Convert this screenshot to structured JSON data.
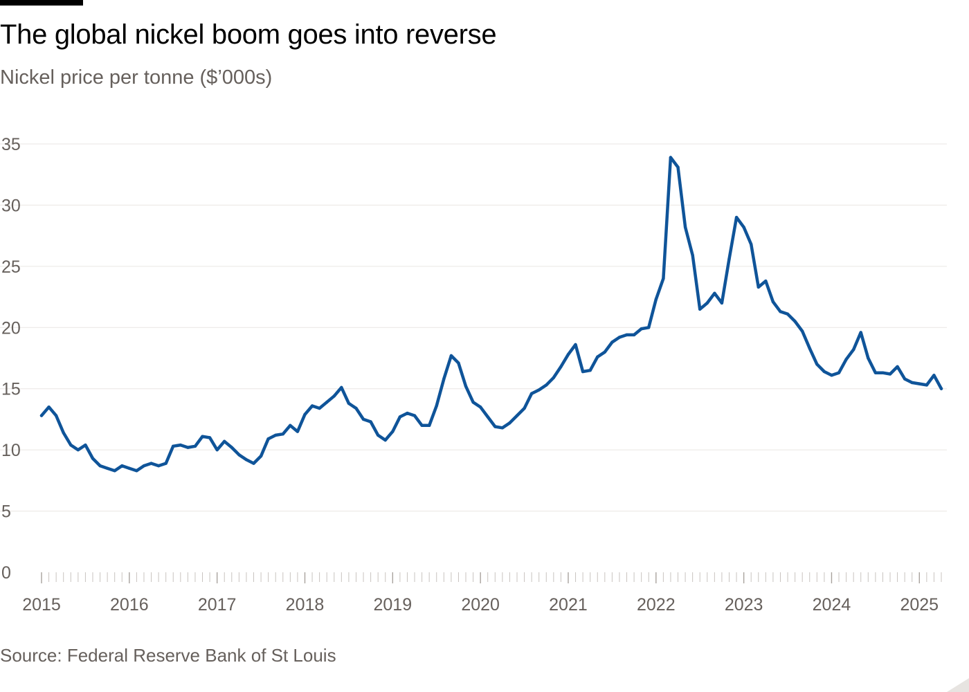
{
  "header": {
    "title": "The global nickel boom goes into reverse",
    "subtitle": "Nickel price per tonne ($’000s)"
  },
  "footer": {
    "source": "Source: Federal Reserve Bank of St Louis"
  },
  "colors": {
    "line": "#0f5499",
    "grid": "#e9e6e3",
    "text": "#66605c",
    "baseline": "#c8c3bf"
  },
  "chart_data": {
    "type": "line",
    "title": "The global nickel boom goes into reverse",
    "ylabel": "Nickel price per tonne ($’000s)",
    "xlabel": "",
    "ylim": [
      0,
      35
    ],
    "yticks": [
      0,
      5,
      10,
      15,
      20,
      25,
      30,
      35
    ],
    "x_range": [
      "2015-01",
      "2025-04"
    ],
    "xtick_labels": [
      "2015",
      "2016",
      "2017",
      "2018",
      "2019",
      "2020",
      "2021",
      "2022",
      "2023",
      "2024",
      "2025"
    ],
    "grid": true,
    "legend": "none",
    "series": [
      {
        "points": [
          [
            "2015-01",
            12.8
          ],
          [
            "2015-02",
            13.5
          ],
          [
            "2015-03",
            12.8
          ],
          [
            "2015-04",
            11.4
          ],
          [
            "2015-05",
            10.4
          ],
          [
            "2015-06",
            10.0
          ],
          [
            "2015-07",
            10.4
          ],
          [
            "2015-08",
            9.3
          ],
          [
            "2015-09",
            8.7
          ],
          [
            "2015-10",
            8.5
          ],
          [
            "2015-11",
            8.3
          ],
          [
            "2015-12",
            8.7
          ],
          [
            "2016-01",
            8.5
          ],
          [
            "2016-02",
            8.3
          ],
          [
            "2016-03",
            8.7
          ],
          [
            "2016-04",
            8.9
          ],
          [
            "2016-05",
            8.7
          ],
          [
            "2016-06",
            8.9
          ],
          [
            "2016-07",
            10.3
          ],
          [
            "2016-08",
            10.4
          ],
          [
            "2016-09",
            10.2
          ],
          [
            "2016-10",
            10.3
          ],
          [
            "2016-11",
            11.1
          ],
          [
            "2016-12",
            11.0
          ],
          [
            "2017-01",
            10.0
          ],
          [
            "2017-02",
            10.7
          ],
          [
            "2017-03",
            10.2
          ],
          [
            "2017-04",
            9.6
          ],
          [
            "2017-05",
            9.2
          ],
          [
            "2017-06",
            8.9
          ],
          [
            "2017-07",
            9.5
          ],
          [
            "2017-08",
            10.9
          ],
          [
            "2017-09",
            11.2
          ],
          [
            "2017-10",
            11.3
          ],
          [
            "2017-11",
            12.0
          ],
          [
            "2017-12",
            11.5
          ],
          [
            "2018-01",
            12.9
          ],
          [
            "2018-02",
            13.6
          ],
          [
            "2018-03",
            13.4
          ],
          [
            "2018-04",
            13.9
          ],
          [
            "2018-05",
            14.4
          ],
          [
            "2018-06",
            15.1
          ],
          [
            "2018-07",
            13.8
          ],
          [
            "2018-08",
            13.4
          ],
          [
            "2018-09",
            12.5
          ],
          [
            "2018-10",
            12.3
          ],
          [
            "2018-11",
            11.2
          ],
          [
            "2018-12",
            10.8
          ],
          [
            "2019-01",
            11.5
          ],
          [
            "2019-02",
            12.7
          ],
          [
            "2019-03",
            13.0
          ],
          [
            "2019-04",
            12.8
          ],
          [
            "2019-05",
            12.0
          ],
          [
            "2019-06",
            12.0
          ],
          [
            "2019-07",
            13.6
          ],
          [
            "2019-08",
            15.8
          ],
          [
            "2019-09",
            17.7
          ],
          [
            "2019-10",
            17.1
          ],
          [
            "2019-11",
            15.2
          ],
          [
            "2019-12",
            13.9
          ],
          [
            "2020-01",
            13.5
          ],
          [
            "2020-02",
            12.7
          ],
          [
            "2020-03",
            11.9
          ],
          [
            "2020-04",
            11.8
          ],
          [
            "2020-05",
            12.2
          ],
          [
            "2020-06",
            12.8
          ],
          [
            "2020-07",
            13.4
          ],
          [
            "2020-08",
            14.6
          ],
          [
            "2020-09",
            14.9
          ],
          [
            "2020-10",
            15.3
          ],
          [
            "2020-11",
            15.9
          ],
          [
            "2020-12",
            16.8
          ],
          [
            "2021-01",
            17.8
          ],
          [
            "2021-02",
            18.6
          ],
          [
            "2021-03",
            16.4
          ],
          [
            "2021-04",
            16.5
          ],
          [
            "2021-05",
            17.6
          ],
          [
            "2021-06",
            18.0
          ],
          [
            "2021-07",
            18.8
          ],
          [
            "2021-08",
            19.2
          ],
          [
            "2021-09",
            19.4
          ],
          [
            "2021-10",
            19.4
          ],
          [
            "2021-11",
            19.9
          ],
          [
            "2021-12",
            20.0
          ],
          [
            "2022-01",
            22.3
          ],
          [
            "2022-02",
            24.0
          ],
          [
            "2022-03",
            33.9
          ],
          [
            "2022-04",
            33.1
          ],
          [
            "2022-05",
            28.2
          ],
          [
            "2022-06",
            25.9
          ],
          [
            "2022-07",
            21.5
          ],
          [
            "2022-08",
            22.0
          ],
          [
            "2022-09",
            22.8
          ],
          [
            "2022-10",
            22.0
          ],
          [
            "2022-11",
            25.6
          ],
          [
            "2022-12",
            29.0
          ],
          [
            "2023-01",
            28.2
          ],
          [
            "2023-02",
            26.8
          ],
          [
            "2023-03",
            23.3
          ],
          [
            "2023-04",
            23.8
          ],
          [
            "2023-05",
            22.1
          ],
          [
            "2023-06",
            21.3
          ],
          [
            "2023-07",
            21.1
          ],
          [
            "2023-08",
            20.5
          ],
          [
            "2023-09",
            19.7
          ],
          [
            "2023-10",
            18.3
          ],
          [
            "2023-11",
            17.0
          ],
          [
            "2023-12",
            16.4
          ],
          [
            "2024-01",
            16.1
          ],
          [
            "2024-02",
            16.3
          ],
          [
            "2024-03",
            17.4
          ],
          [
            "2024-04",
            18.2
          ],
          [
            "2024-05",
            19.6
          ],
          [
            "2024-06",
            17.5
          ],
          [
            "2024-07",
            16.3
          ],
          [
            "2024-08",
            16.3
          ],
          [
            "2024-09",
            16.2
          ],
          [
            "2024-10",
            16.8
          ],
          [
            "2024-11",
            15.8
          ],
          [
            "2024-12",
            15.5
          ],
          [
            "2025-01",
            15.4
          ],
          [
            "2025-02",
            15.3
          ],
          [
            "2025-03",
            16.1
          ],
          [
            "2025-04",
            15.0
          ]
        ]
      }
    ]
  }
}
